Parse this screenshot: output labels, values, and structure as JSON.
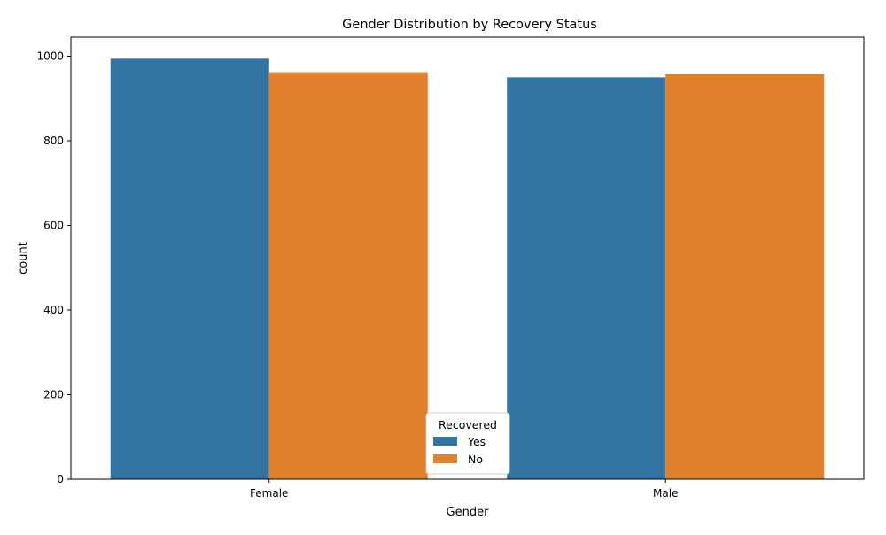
{
  "chart_data": {
    "type": "bar",
    "title": "Gender Distribution by Recovery Status",
    "xlabel": "Gender",
    "ylabel": "count",
    "categories": [
      "Female",
      "Male"
    ],
    "series": [
      {
        "name": "Yes",
        "values": [
          994,
          950
        ],
        "color": "#3274a1"
      },
      {
        "name": "No",
        "values": [
          962,
          958
        ],
        "color": "#e1812c"
      }
    ],
    "ylim": [
      0,
      1045
    ],
    "yticks": [
      0,
      200,
      400,
      600,
      800,
      1000
    ],
    "grid": false,
    "legend": {
      "title": "Recovered",
      "placement": "bottom-center"
    }
  }
}
